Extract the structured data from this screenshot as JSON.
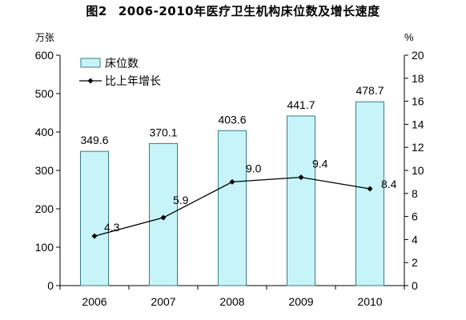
{
  "figure": {
    "label": "图2",
    "title": "2006-2010年医疗卫生机构床位数及增长速度"
  },
  "chart_data": {
    "type": "bar+line",
    "categories": [
      "2006",
      "2007",
      "2008",
      "2009",
      "2010"
    ],
    "series": [
      {
        "name": "床位数",
        "type": "bar",
        "axis": "left",
        "values": [
          349.6,
          370.1,
          403.6,
          441.7,
          478.7
        ],
        "color": "#c6f4f8",
        "edge_color": "#3b7b85"
      },
      {
        "name": "比上年增长",
        "type": "line",
        "axis": "right",
        "values": [
          4.3,
          5.9,
          9.0,
          9.4,
          8.4
        ],
        "labels": [
          "4.3",
          "5.9",
          "9.0",
          "9.4",
          "8.4"
        ],
        "color": "#000000"
      }
    ],
    "bar_labels": [
      "349.6",
      "370.1",
      "403.6",
      "441.7",
      "478.7"
    ],
    "y_left": {
      "unit": "万张",
      "min": 0,
      "max": 600,
      "ticks": [
        0,
        100,
        200,
        300,
        400,
        500,
        600
      ]
    },
    "y_right": {
      "unit": "%",
      "min": 0,
      "max": 20,
      "ticks": [
        0,
        2,
        4,
        6,
        8,
        10,
        12,
        14,
        16,
        18,
        20
      ]
    },
    "grid": false,
    "legend_position": "top-left"
  }
}
